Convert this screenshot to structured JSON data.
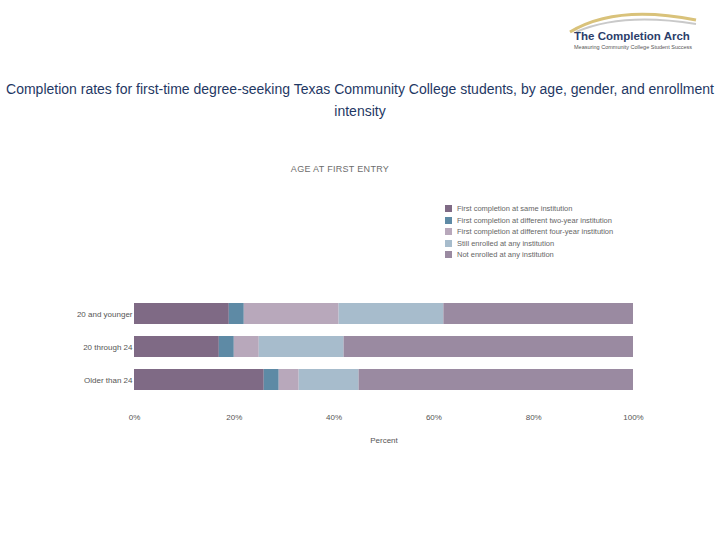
{
  "chart_data": {
    "type": "bar",
    "title": "Completion rates for first-time degree-seeking Texas Community College students, by age, gender, and enrollment intensity",
    "subtitle": "AGE AT FIRST ENTRY",
    "annotations": [
      "The Completion Arch",
      "Measuring Community College Student Success"
    ],
    "orientation": "horizontal",
    "stacked": true,
    "legend": "top-right",
    "grid": false,
    "categories": [
      "20 and younger",
      "20 through 24",
      "Older than 24"
    ],
    "series": [
      {
        "name": "First completion at same institution",
        "color": "#7f6a85",
        "values": [
          19,
          17,
          26
        ]
      },
      {
        "name": "First completion at different two-year institution",
        "color": "#5e8aa5",
        "values": [
          3,
          3,
          3
        ]
      },
      {
        "name": "First completion at different four-year institution",
        "color": "#b8a8bb",
        "values": [
          19,
          5,
          4
        ]
      },
      {
        "name": "Still enrolled at any institution",
        "color": "#a7bccc",
        "values": [
          21,
          17,
          12
        ]
      },
      {
        "name": "Not enrolled at any institution",
        "color": "#9a8aa1",
        "values": [
          38,
          58,
          55
        ]
      }
    ],
    "xlabel": "Percent",
    "xlim": [
      0,
      100
    ],
    "xticks": [
      {
        "value": 0,
        "label": "0%"
      },
      {
        "value": 20,
        "label": "20%"
      },
      {
        "value": 40,
        "label": "40%"
      },
      {
        "value": 60,
        "label": "60%"
      },
      {
        "value": 80,
        "label": "80%"
      },
      {
        "value": 100,
        "label": "100%"
      }
    ]
  }
}
